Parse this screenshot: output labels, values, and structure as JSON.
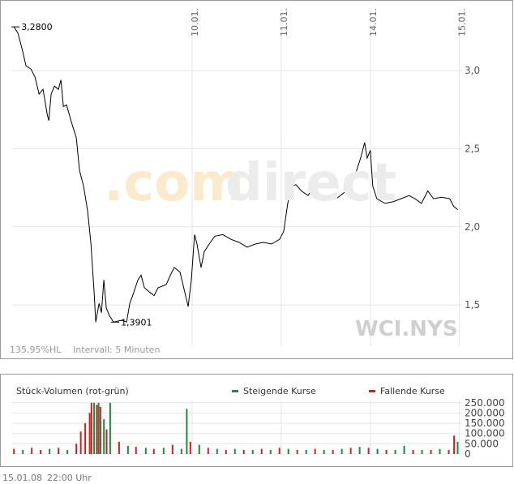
{
  "chart_data": [
    {
      "type": "line",
      "color": "#000000",
      "x": [
        -1.0,
        -0.955,
        -0.909,
        -0.864,
        -0.809,
        -0.764,
        -0.718,
        -0.673,
        -0.627,
        -0.609,
        -0.582,
        -0.545,
        -0.5,
        -0.473,
        -0.445,
        -0.409,
        -0.355,
        -0.3,
        -0.264,
        -0.218,
        -0.173,
        -0.136,
        -0.1,
        -0.082,
        -0.045,
        -0.018,
        0.009,
        0.036,
        0.073,
        0.118,
        0.191,
        0.227,
        0.264,
        0.3,
        0.345,
        0.391,
        0.427,
        0.464,
        0.527,
        0.573,
        0.618,
        0.709,
        0.755,
        0.8,
        0.864,
        0.918,
        0.955,
        0.991,
        1.027,
        1.055,
        1.1,
        1.136,
        1.191,
        1.255,
        1.345,
        1.436,
        1.527,
        1.618,
        1.709,
        1.8,
        1.891,
        1.982,
        2.027,
        2.073,
        2.118,
        2.164,
        2.227,
        2.3,
        2.373,
        2.436,
        2.527,
        2.618,
        2.709,
        2.755,
        2.8,
        2.845,
        2.891,
        2.936,
        2.964,
        3.0,
        3.027,
        3.073,
        3.164,
        3.255,
        3.345,
        3.436,
        3.5,
        3.573,
        3.645,
        3.709,
        3.8,
        3.891,
        3.936,
        3.982
      ],
      "values": [
        3.28,
        3.24,
        3.14,
        3.03,
        3.01,
        2.96,
        2.85,
        2.88,
        2.72,
        2.68,
        2.85,
        2.9,
        2.88,
        2.94,
        2.77,
        2.78,
        2.67,
        2.57,
        2.36,
        2.26,
        2.1,
        1.89,
        1.58,
        1.39,
        1.51,
        1.45,
        1.66,
        1.48,
        1.43,
        1.39,
        1.4,
        1.4,
        1.39,
        1.51,
        1.58,
        1.66,
        1.69,
        1.61,
        1.58,
        1.56,
        1.61,
        1.63,
        1.69,
        1.74,
        1.71,
        1.58,
        1.49,
        1.66,
        1.95,
        1.89,
        1.74,
        1.84,
        1.89,
        1.94,
        1.95,
        1.92,
        1.9,
        1.87,
        1.89,
        1.9,
        1.89,
        1.92,
        1.97,
        2.15,
        2.26,
        2.27,
        2.23,
        2.2,
        2.26,
        2.18,
        2.2,
        2.18,
        2.22,
        2.26,
        2.28,
        2.36,
        2.44,
        2.54,
        2.44,
        2.49,
        2.26,
        2.18,
        2.15,
        2.16,
        2.18,
        2.2,
        2.18,
        2.15,
        2.23,
        2.18,
        2.19,
        2.18,
        2.13,
        2.11
      ],
      "xlim": [
        -1.02,
        4.03
      ],
      "ylim": [
        1.236,
        3.4
      ],
      "xticks": [
        {
          "value": 1,
          "label": "10.01."
        },
        {
          "value": 2,
          "label": "11.01."
        },
        {
          "value": 3,
          "label": "14.01."
        },
        {
          "value": 4,
          "label": "15.01."
        }
      ],
      "yticks": [
        {
          "value": 1.5,
          "label": "1,5"
        },
        {
          "value": 2.0,
          "label": "2,0"
        },
        {
          "value": 2.5,
          "label": "2,5"
        },
        {
          "value": 3.0,
          "label": "3,0"
        }
      ],
      "grid": true,
      "annotations": [
        {
          "label": "3,2800",
          "x": -1.0,
          "y": 3.28
        },
        {
          "label": "1,3901",
          "x": 0.118,
          "y": 1.39
        }
      ],
      "watermark": [
        ".com",
        "direct"
      ],
      "symbol": "WCI.NYS",
      "notes": [
        "135,95%HL",
        "Intervall: 5 Minuten"
      ]
    },
    {
      "type": "bar",
      "title": "Stück-Volumen (rot-grün)",
      "x": [
        -1.0,
        -0.9,
        -0.8,
        -0.7,
        -0.6,
        -0.5,
        -0.4,
        -0.3,
        -0.25,
        -0.2,
        -0.15,
        -0.13,
        -0.1,
        -0.07,
        -0.05,
        -0.03,
        0.01,
        0.04,
        0.08,
        0.18,
        0.28,
        0.37,
        0.48,
        0.57,
        0.68,
        0.78,
        0.88,
        0.94,
        0.98,
        1.08,
        1.18,
        1.28,
        1.38,
        1.48,
        1.58,
        1.68,
        1.78,
        1.88,
        1.98,
        2.08,
        2.18,
        2.28,
        2.38,
        2.48,
        2.58,
        2.68,
        2.78,
        2.88,
        2.98,
        3.08,
        3.18,
        3.28,
        3.38,
        3.48,
        3.58,
        3.68,
        3.78,
        3.88,
        3.94,
        3.98
      ],
      "series": [
        {
          "name": "Steigende Kurse",
          "color": "#1f8a3a",
          "values": [
            null,
            20000,
            null,
            null,
            25000,
            null,
            20000,
            null,
            null,
            null,
            null,
            null,
            250000,
            null,
            250000,
            null,
            170000,
            null,
            250000,
            null,
            40000,
            null,
            30000,
            null,
            30000,
            null,
            25000,
            220000,
            null,
            45000,
            null,
            25000,
            null,
            25000,
            null,
            20000,
            null,
            20000,
            null,
            25000,
            null,
            20000,
            null,
            20000,
            null,
            25000,
            null,
            35000,
            null,
            25000,
            null,
            20000,
            40000,
            null,
            20000,
            null,
            25000,
            null,
            null,
            60000
          ]
        },
        {
          "name": "Fallende Kurse",
          "color": "#cc1f1f",
          "values": [
            25000,
            null,
            30000,
            20000,
            null,
            30000,
            null,
            50000,
            110000,
            150000,
            200000,
            250000,
            null,
            240000,
            null,
            230000,
            null,
            120000,
            null,
            60000,
            null,
            35000,
            null,
            25000,
            null,
            45000,
            null,
            null,
            60000,
            null,
            30000,
            null,
            20000,
            null,
            20000,
            null,
            25000,
            null,
            30000,
            null,
            20000,
            null,
            25000,
            null,
            20000,
            null,
            30000,
            null,
            30000,
            null,
            20000,
            null,
            null,
            20000,
            null,
            20000,
            null,
            20000,
            90000,
            null
          ]
        }
      ],
      "xlim": [
        -1.02,
        4.03
      ],
      "ylim": [
        0,
        265000
      ],
      "yticks": [
        0,
        {
          "value": 50000,
          "label": "50.000"
        },
        {
          "value": 100000,
          "label": "100.000"
        },
        {
          "value": 150000,
          "label": "150.000"
        },
        {
          "value": 200000,
          "label": "200.000"
        },
        {
          "value": 250000,
          "label": "250.000"
        }
      ],
      "grid": true
    }
  ],
  "footer": {
    "date": "15.01.08",
    "time": "22:00 Uhr"
  }
}
